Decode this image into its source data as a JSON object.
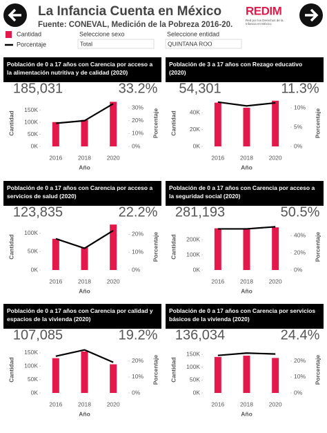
{
  "header": {
    "title": "La Infancia Cuenta en México",
    "subtitle": "Fuente: CONEVAL, Medición de la Pobreza 2016-20.",
    "logo": "REDIM",
    "logo_caption": "Red por los Derechos de la Infancia en México",
    "filters": [
      {
        "label": "Seleccione sexo",
        "value": "Total"
      },
      {
        "label": "Seleccione entidad",
        "value": "QUINTANA ROO"
      }
    ]
  },
  "chart_data": [
    {
      "type": "bar-line",
      "title": "Población de 0 a 17 años con Carencia por acceso a la alimentación nutritiva y de calidad (2020)",
      "x_label": "Año",
      "categories": [
        "2016",
        "2018",
        "2020"
      ],
      "series": [
        {
          "name": "Cantidad",
          "color": "#e3194b",
          "values": [
            101000,
            110000,
            185031
          ],
          "value_labels": [
            null,
            null,
            "185,031"
          ]
        },
        {
          "name": "Porcentaje",
          "color": "#000000",
          "axis": "y2",
          "values": [
            18,
            20,
            33.2
          ],
          "value_labels": [
            null,
            null,
            "33.2%"
          ]
        }
      ],
      "ylim": [
        0,
        192000
      ],
      "yticks": [
        {
          "value": 0,
          "label": "0K"
        },
        {
          "value": 50000,
          "label": "50K"
        },
        {
          "value": 100000,
          "label": "100K"
        },
        {
          "value": 150000,
          "label": "150K"
        }
      ],
      "y2lim": [
        0,
        36
      ],
      "y2ticks": [
        {
          "value": 0,
          "label": "0%"
        },
        {
          "value": 10,
          "label": "10%"
        },
        {
          "value": 20,
          "label": "20%"
        },
        {
          "value": 30,
          "label": "30%"
        }
      ]
    },
    {
      "type": "bar-line",
      "title": "Población de 3 a 17 años con Rezago educativo (2020)",
      "x_label": "Año",
      "categories": [
        "2016",
        "2018",
        "2020"
      ],
      "series": [
        {
          "name": "Cantidad",
          "color": "#e3194b",
          "values": [
            52000,
            46000,
            54301
          ],
          "value_labels": [
            null,
            null,
            "54,301"
          ]
        },
        {
          "name": "Porcentaje",
          "color": "#000000",
          "axis": "y2",
          "values": [
            11.5,
            10.5,
            11.3
          ],
          "value_labels": [
            null,
            null,
            "11.3%"
          ]
        }
      ],
      "ylim": [
        0,
        55000
      ],
      "yticks": [
        {
          "value": 0,
          "label": "0K"
        },
        {
          "value": 20000,
          "label": "20K"
        },
        {
          "value": 40000,
          "label": "40K"
        }
      ],
      "y2lim": [
        0,
        12
      ],
      "y2ticks": [
        {
          "value": 0,
          "label": "0%"
        },
        {
          "value": 5,
          "label": "5%"
        },
        {
          "value": 10,
          "label": "10%"
        }
      ]
    },
    {
      "type": "bar-line",
      "title": "Población de 0 a 17 años con Carencia por acceso a servicios de salud (2020)",
      "x_label": "Año",
      "categories": [
        "2016",
        "2018",
        "2020"
      ],
      "series": [
        {
          "name": "Cantidad",
          "color": "#e3194b",
          "values": [
            85000,
            62000,
            123835
          ],
          "value_labels": [
            null,
            null,
            "123,835"
          ]
        },
        {
          "name": "Porcentaje",
          "color": "#000000",
          "axis": "y2",
          "values": [
            17.6,
            12.2,
            22.2
          ],
          "value_labels": [
            null,
            null,
            "22.2%"
          ]
        }
      ],
      "ylim": [
        0,
        126000
      ],
      "yticks": [
        {
          "value": 0,
          "label": "0K"
        },
        {
          "value": 50000,
          "label": "50K"
        },
        {
          "value": 100000,
          "label": "100K"
        }
      ],
      "y2lim": [
        0,
        26
      ],
      "y2ticks": [
        {
          "value": 0,
          "label": "0%"
        },
        {
          "value": 10,
          "label": "10%"
        },
        {
          "value": 20,
          "label": "20%"
        }
      ]
    },
    {
      "type": "bar-line",
      "title": "Población de 0 a 17 años con Carencia por acceso a la seguridad social (2020)",
      "x_label": "Año",
      "categories": [
        "2016",
        "2018",
        "2020"
      ],
      "series": [
        {
          "name": "Cantidad",
          "color": "#e3194b",
          "values": [
            275000,
            270000,
            281193
          ],
          "value_labels": [
            null,
            null,
            "281,193"
          ]
        },
        {
          "name": "Porcentaje",
          "color": "#000000",
          "axis": "y2",
          "values": [
            48,
            48,
            50.5
          ],
          "value_labels": [
            null,
            null,
            "50.5%"
          ]
        }
      ],
      "ylim": [
        0,
        305000
      ],
      "yticks": [
        {
          "value": 0,
          "label": "0K"
        },
        {
          "value": 100000,
          "label": "100K"
        },
        {
          "value": 200000,
          "label": "200K"
        }
      ],
      "y2lim": [
        0,
        54
      ],
      "y2ticks": [
        {
          "value": 0,
          "label": "0%"
        },
        {
          "value": 20,
          "label": "20%"
        },
        {
          "value": 40,
          "label": "40%"
        }
      ]
    },
    {
      "type": "bar-line",
      "title": "Población de 0 a 17 años con Carencia por calidad y espacios de la vivienda (2020)",
      "x_label": "Año",
      "categories": [
        "2016",
        "2018",
        "2020"
      ],
      "series": [
        {
          "name": "Cantidad",
          "color": "#e3194b",
          "values": [
            130000,
            155000,
            107085
          ],
          "value_labels": [
            null,
            null,
            "107,085"
          ]
        },
        {
          "name": "Porcentaje",
          "color": "#000000",
          "axis": "y2",
          "values": [
            23,
            27,
            19.2
          ],
          "value_labels": [
            null,
            null,
            "19.2%"
          ]
        }
      ],
      "ylim": [
        0,
        173000
      ],
      "yticks": [
        {
          "value": 0,
          "label": "0K"
        },
        {
          "value": 50000,
          "label": "50K"
        },
        {
          "value": 100000,
          "label": "100K"
        },
        {
          "value": 150000,
          "label": "150K"
        }
      ],
      "y2lim": [
        0,
        29
      ],
      "y2ticks": [
        {
          "value": 0,
          "label": "0%"
        },
        {
          "value": 10,
          "label": "10%"
        },
        {
          "value": 20,
          "label": "20%"
        }
      ]
    },
    {
      "type": "bar-line",
      "title": "Población de 0 a 17 años con Carencia por servicios básicos de la vivienda (2020)",
      "x_label": "Año",
      "categories": [
        "2016",
        "2018",
        "2020"
      ],
      "series": [
        {
          "name": "Cantidad",
          "color": "#e3194b",
          "values": [
            140000,
            145000,
            136034
          ],
          "value_labels": [
            null,
            null,
            "136,034"
          ]
        },
        {
          "name": "Porcentaje",
          "color": "#000000",
          "axis": "y2",
          "values": [
            23.5,
            25,
            24.4
          ],
          "value_labels": [
            null,
            null,
            "24.4%"
          ]
        }
      ],
      "ylim": [
        0,
        180000
      ],
      "yticks": [
        {
          "value": 0,
          "label": "0K"
        },
        {
          "value": 50000,
          "label": "50K"
        },
        {
          "value": 100000,
          "label": "100K"
        },
        {
          "value": 150000,
          "label": "150K"
        }
      ],
      "y2lim": [
        0,
        29
      ],
      "y2ticks": [
        {
          "value": 0,
          "label": "0%"
        },
        {
          "value": 10,
          "label": "10%"
        },
        {
          "value": 20,
          "label": "20%"
        }
      ]
    }
  ]
}
